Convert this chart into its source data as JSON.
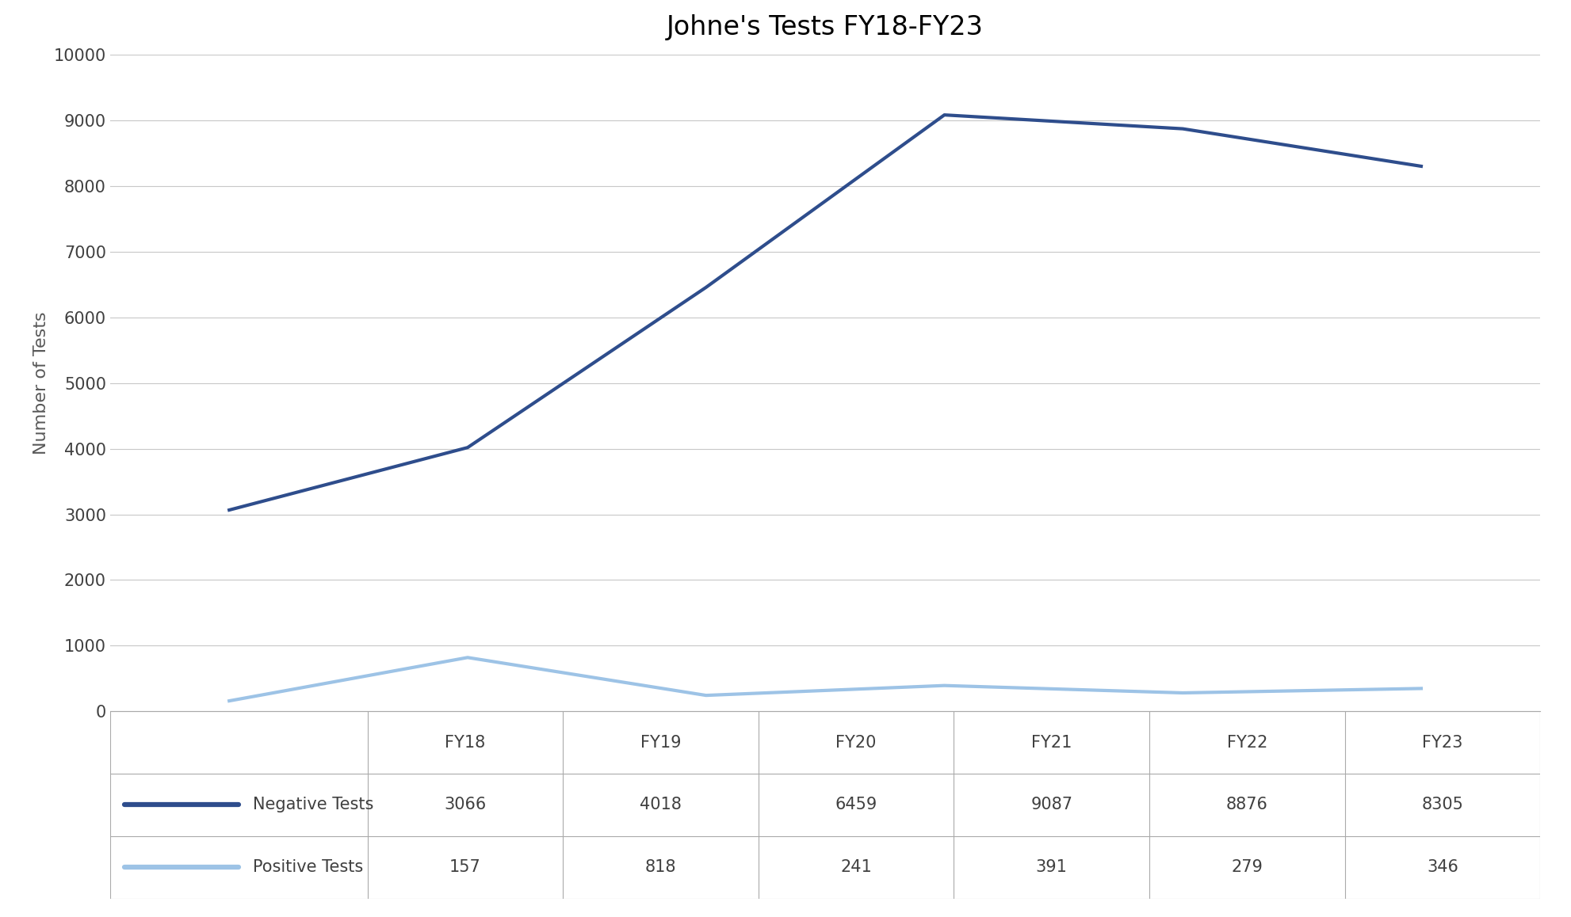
{
  "title": "Johne's Tests FY18-FY23",
  "categories": [
    "FY18",
    "FY19",
    "FY20",
    "FY21",
    "FY22",
    "FY23"
  ],
  "negative_tests": [
    3066,
    4018,
    6459,
    9087,
    8876,
    8305
  ],
  "positive_tests": [
    157,
    818,
    241,
    391,
    279,
    346
  ],
  "negative_color": "#2E4D8C",
  "positive_color": "#9DC3E6",
  "ylabel": "Number of Tests",
  "ylabel_color": "#595959",
  "ylim": [
    0,
    10000
  ],
  "yticks": [
    0,
    1000,
    2000,
    3000,
    4000,
    5000,
    6000,
    7000,
    8000,
    9000,
    10000
  ],
  "background_color": "#FFFFFF",
  "grid_color": "#C8C8C8",
  "title_fontsize": 24,
  "axis_label_fontsize": 16,
  "tick_fontsize": 15,
  "table_fontsize": 15,
  "line_width": 3.0,
  "legend_label_negative": "Negative Tests",
  "legend_label_positive": "Positive Tests",
  "table_border_color": "#AAAAAA",
  "text_color": "#404040"
}
